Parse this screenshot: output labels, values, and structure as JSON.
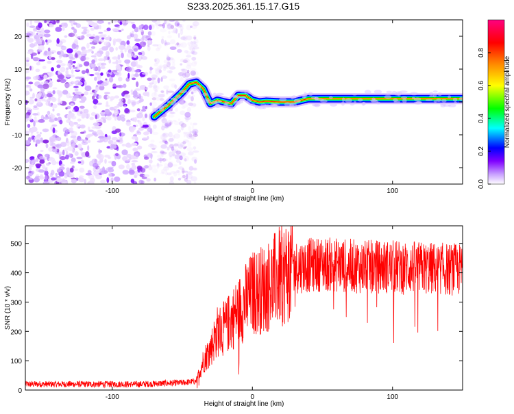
{
  "figure_title": "S233.2025.361.15.17.G15",
  "chart_data": [
    {
      "type": "heatmap",
      "title": "S233.2025.361.15.17.G15",
      "xlabel": "Height of straight line (km)",
      "ylabel": "Frequency (Hz)",
      "xlim": [
        -162,
        150
      ],
      "ylim": [
        -25,
        25
      ],
      "xticks": [
        -100,
        0,
        100
      ],
      "xtick_labels": [
        "-100",
        "0",
        "100"
      ],
      "yticks": [
        -20,
        -10,
        0,
        10,
        20
      ],
      "ytick_labels": [
        "-20",
        "-10",
        "0",
        "10",
        "20"
      ],
      "colorbar": {
        "label": "Normalized spectral amplitude",
        "range": [
          0,
          1
        ],
        "ticks": [
          0.0,
          0.2,
          0.4,
          0.6,
          0.8
        ],
        "tick_labels": [
          "0.0",
          "0.2",
          "0.4",
          "0.6",
          "0.8"
        ],
        "colors": [
          "#ffffff",
          "#8000ff",
          "#0000ff",
          "#00ffff",
          "#00ff00",
          "#ffff00",
          "#ff8000",
          "#ff0000",
          "#ff0080"
        ]
      },
      "ridge": {
        "x": [
          -70,
          -60,
          -50,
          -45,
          -40,
          -35,
          -30,
          -25,
          -20,
          -15,
          -10,
          -5,
          0,
          5,
          10,
          20,
          30,
          40,
          60,
          100,
          150
        ],
        "frequency": [
          -4.5,
          -1,
          3,
          5.5,
          6,
          4,
          -0.5,
          0.5,
          0,
          -0.5,
          2,
          2,
          0.5,
          0,
          0.2,
          0,
          0,
          1,
          1,
          1,
          1
        ]
      },
      "noise_region_x": [
        -162,
        -50
      ]
    },
    {
      "type": "line",
      "xlabel": "Height of straight line (km)",
      "ylabel": "SNR (10 * v/v)",
      "xlim": [
        -162,
        150
      ],
      "ylim": [
        0,
        560
      ],
      "xticks": [
        -100,
        0,
        100
      ],
      "xtick_labels": [
        "-100",
        "0",
        "100"
      ],
      "yticks": [
        0,
        100,
        200,
        300,
        400,
        500
      ],
      "ytick_labels": [
        "0",
        "100",
        "200",
        "300",
        "400",
        "500"
      ],
      "series": [
        {
          "name": "SNR",
          "color": "#ff0000",
          "x": [
            -162,
            -120,
            -80,
            -50,
            -40,
            -35,
            -30,
            -25,
            -20,
            -10,
            0,
            10,
            20,
            30,
            50,
            80,
            100,
            150
          ],
          "values": [
            20,
            20,
            20,
            25,
            30,
            100,
            140,
            200,
            210,
            270,
            330,
            350,
            390,
            420,
            430,
            420,
            420,
            410
          ]
        }
      ]
    }
  ]
}
